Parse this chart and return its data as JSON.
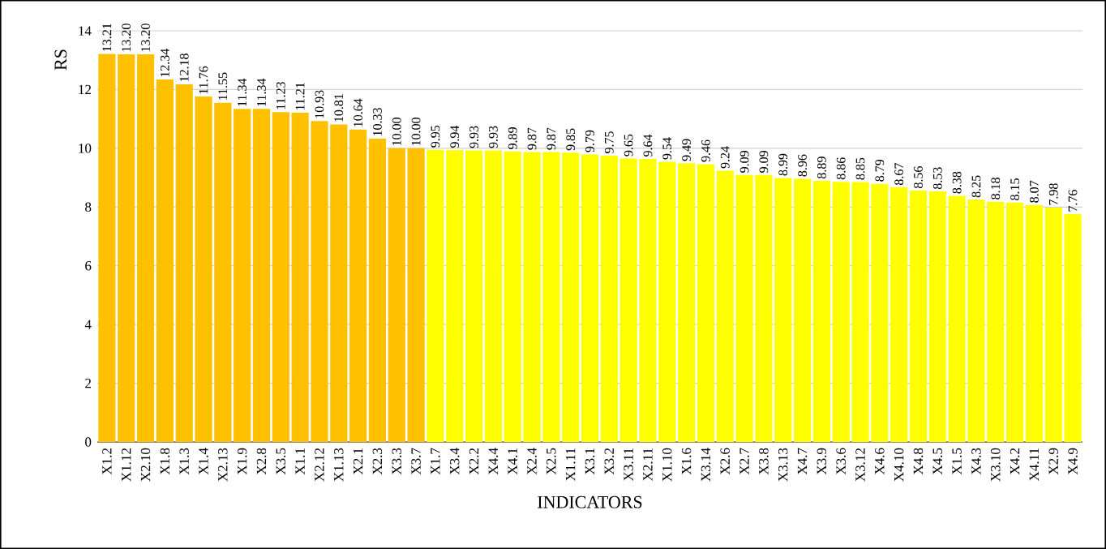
{
  "chart_data": {
    "type": "bar",
    "ylabel": "RS",
    "xlabel": "INDICATORS",
    "categories": [
      "X1.2",
      "X1.12",
      "X2.10",
      "X1.8",
      "X1.3",
      "X1.4",
      "X2.13",
      "X1.9",
      "X2.8",
      "X3.5",
      "X1.1",
      "X2.12",
      "X1.13",
      "X2.1",
      "X2.3",
      "X3.3",
      "X3.7",
      "X1.7",
      "X3.4",
      "X2.2",
      "X4.4",
      "X4.1",
      "X2.4",
      "X2.5",
      "X1.11",
      "X3.1",
      "X3.2",
      "X3.11",
      "X2.11",
      "X1.10",
      "X1.6",
      "X3.14",
      "X2.6",
      "X2.7",
      "X3.8",
      "X3.13",
      "X4.7",
      "X3.9",
      "X3.6",
      "X3.12",
      "X4.6",
      "X4.10",
      "X4.8",
      "X4.5",
      "X1.5",
      "X4.3",
      "X3.10",
      "X4.2",
      "X4.11",
      "X2.9",
      "X4.9"
    ],
    "values": [
      13.21,
      13.2,
      13.2,
      12.34,
      12.18,
      11.76,
      11.55,
      11.34,
      11.34,
      11.23,
      11.21,
      10.93,
      10.81,
      10.64,
      10.33,
      10.0,
      10.0,
      9.95,
      9.94,
      9.93,
      9.93,
      9.89,
      9.87,
      9.87,
      9.85,
      9.79,
      9.75,
      9.65,
      9.64,
      9.54,
      9.49,
      9.46,
      9.24,
      9.09,
      9.09,
      8.99,
      8.96,
      8.89,
      8.86,
      8.85,
      8.79,
      8.67,
      8.56,
      8.53,
      8.38,
      8.25,
      8.18,
      8.15,
      8.07,
      7.98,
      7.76
    ],
    "value_labels": [
      "13.21",
      "13.20",
      "13.20",
      "12.34",
      "12.18",
      "11.76",
      "11.55",
      "11.34",
      "11.34",
      "11.23",
      "11.21",
      "10.93",
      "10.81",
      "10.64",
      "10.33",
      "10.00",
      "10.00",
      "9.95",
      "9.94",
      "9.93",
      "9.93",
      "9.89",
      "9.87",
      "9.87",
      "9.85",
      "9.79",
      "9.75",
      "9.65",
      "9.64",
      "9.54",
      "9.49",
      "9.46",
      "9.24",
      "9.09",
      "9.09",
      "8.99",
      "8.96",
      "8.89",
      "8.86",
      "8.85",
      "8.79",
      "8.67",
      "8.56",
      "8.53",
      "8.38",
      "8.25",
      "8.18",
      "8.15",
      "8.07",
      "7.98",
      "7.76"
    ],
    "colors": [
      "#ffc000",
      "#ffc000",
      "#ffc000",
      "#ffc000",
      "#ffc000",
      "#ffc000",
      "#ffc000",
      "#ffc000",
      "#ffc000",
      "#ffc000",
      "#ffc000",
      "#ffc000",
      "#ffc000",
      "#ffc000",
      "#ffc000",
      "#ffc000",
      "#ffc000",
      "#ffff00",
      "#ffff00",
      "#ffff00",
      "#ffff00",
      "#ffff00",
      "#ffff00",
      "#ffff00",
      "#ffff00",
      "#ffff00",
      "#ffff00",
      "#ffff00",
      "#ffff00",
      "#ffff00",
      "#ffff00",
      "#ffff00",
      "#ffff00",
      "#ffff00",
      "#ffff00",
      "#ffff00",
      "#ffff00",
      "#ffff00",
      "#ffff00",
      "#ffff00",
      "#ffff00",
      "#ffff00",
      "#ffff00",
      "#ffff00",
      "#ffff00",
      "#ffff00",
      "#ffff00",
      "#ffff00",
      "#ffff00",
      "#ffff00",
      "#ffff00"
    ],
    "ylim": [
      0,
      14
    ],
    "yticks": [
      0,
      2,
      4,
      6,
      8,
      10,
      12,
      14
    ],
    "grid": "y"
  }
}
